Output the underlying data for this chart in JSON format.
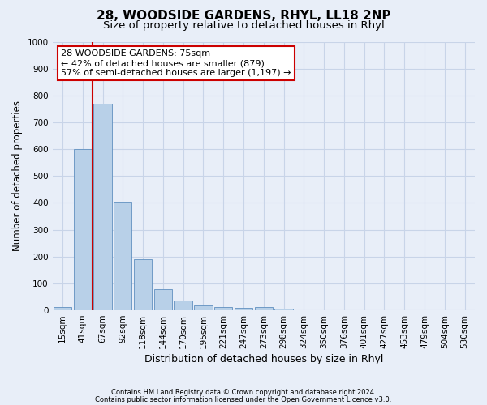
{
  "title": "28, WOODSIDE GARDENS, RHYL, LL18 2NP",
  "subtitle": "Size of property relative to detached houses in Rhyl",
  "xlabel": "Distribution of detached houses by size in Rhyl",
  "ylabel": "Number of detached properties",
  "footer_line1": "Contains HM Land Registry data © Crown copyright and database right 2024.",
  "footer_line2": "Contains public sector information licensed under the Open Government Licence v3.0.",
  "bar_labels": [
    "15sqm",
    "41sqm",
    "67sqm",
    "92sqm",
    "118sqm",
    "144sqm",
    "170sqm",
    "195sqm",
    "221sqm",
    "247sqm",
    "273sqm",
    "298sqm",
    "324sqm",
    "350sqm",
    "376sqm",
    "401sqm",
    "427sqm",
    "453sqm",
    "479sqm",
    "504sqm",
    "530sqm"
  ],
  "bar_values": [
    12,
    600,
    770,
    405,
    190,
    78,
    35,
    18,
    12,
    10,
    12,
    6,
    0,
    0,
    0,
    0,
    0,
    0,
    0,
    0,
    0
  ],
  "bar_color": "#b8d0e8",
  "bar_edge_color": "#6090c0",
  "ylim": [
    0,
    1000
  ],
  "yticks": [
    0,
    100,
    200,
    300,
    400,
    500,
    600,
    700,
    800,
    900,
    1000
  ],
  "property_line_x": 1.5,
  "annotation_text": "28 WOODSIDE GARDENS: 75sqm\n← 42% of detached houses are smaller (879)\n57% of semi-detached houses are larger (1,197) →",
  "annotation_box_color": "#ffffff",
  "annotation_box_edge": "#cc0000",
  "vline_color": "#cc0000",
  "background_color": "#e8eef8",
  "plot_bg_color": "#e8eef8",
  "grid_color": "#c8d4e8",
  "title_fontsize": 11,
  "subtitle_fontsize": 9.5,
  "axis_label_fontsize": 8.5,
  "tick_fontsize": 7.5,
  "annotation_fontsize": 8
}
